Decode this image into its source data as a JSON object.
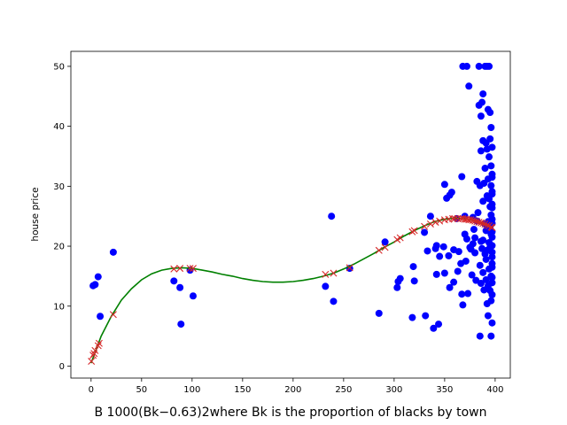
{
  "chart_data": {
    "type": "scatter",
    "title": "",
    "xlabel": "B 1000(Bk−0.63)2where Bk is the proportion of blacks by town",
    "ylabel": "house price",
    "xlim": [
      -20,
      415
    ],
    "ylim": [
      -2,
      52.5
    ],
    "xticks": [
      0,
      50,
      100,
      150,
      200,
      250,
      300,
      350,
      400
    ],
    "yticks": [
      0,
      10,
      20,
      30,
      40,
      50
    ],
    "grid": false,
    "legend": "none",
    "colors": {
      "observed": "#0000ff",
      "predicted": "#d62728",
      "fit": "#008000"
    },
    "series": [
      {
        "kind": "scatter-dot",
        "points": [
          [
            2,
            13.4
          ],
          [
            4,
            13.6
          ],
          [
            7,
            14.9
          ],
          [
            9,
            8.3
          ],
          [
            22,
            19.0
          ],
          [
            82,
            14.2
          ],
          [
            88,
            13.1
          ],
          [
            89,
            7.0
          ],
          [
            98,
            16.0
          ],
          [
            101,
            11.7
          ],
          [
            232,
            13.3
          ],
          [
            238,
            25.0
          ],
          [
            240,
            10.8
          ],
          [
            256,
            16.3
          ],
          [
            285,
            8.8
          ],
          [
            291,
            20.7
          ],
          [
            303,
            13.1
          ],
          [
            304,
            14.1
          ],
          [
            306,
            14.6
          ],
          [
            318,
            8.1
          ],
          [
            319,
            16.6
          ],
          [
            320,
            14.2
          ],
          [
            330,
            22.3
          ],
          [
            331,
            8.4
          ],
          [
            333,
            19.2
          ],
          [
            336,
            25.0
          ],
          [
            339,
            6.3
          ],
          [
            341,
            19.6
          ],
          [
            342,
            15.3
          ],
          [
            342,
            20.1
          ],
          [
            344,
            7.0
          ],
          [
            345,
            18.3
          ],
          [
            349,
            19.9
          ],
          [
            350,
            15.5
          ],
          [
            350,
            30.3
          ],
          [
            352,
            28.0
          ],
          [
            354,
            18.4
          ],
          [
            355,
            13.1
          ],
          [
            355,
            28.5
          ],
          [
            357,
            29.0
          ],
          [
            359,
            19.4
          ],
          [
            359,
            14.0
          ],
          [
            362,
            24.6
          ],
          [
            363,
            15.8
          ],
          [
            364,
            19.1
          ],
          [
            366,
            17.1
          ],
          [
            367,
            31.6
          ],
          [
            367,
            12.0
          ],
          [
            368,
            10.2
          ],
          [
            368,
            50.0
          ],
          [
            370,
            25.0
          ],
          [
            370,
            22.0
          ],
          [
            371,
            17.5
          ],
          [
            372,
            21.2
          ],
          [
            372,
            50.0
          ],
          [
            373,
            12.1
          ],
          [
            374,
            46.7
          ],
          [
            375,
            19.8
          ],
          [
            376,
            19.5
          ],
          [
            377,
            15.2
          ],
          [
            378,
            20.4
          ],
          [
            378,
            24.8
          ],
          [
            379,
            22.8
          ],
          [
            380,
            18.9
          ],
          [
            380,
            21.4
          ],
          [
            381,
            14.3
          ],
          [
            382,
            24.2
          ],
          [
            382,
            30.8
          ],
          [
            383,
            25.6
          ],
          [
            384,
            50.0
          ],
          [
            384,
            43.5
          ],
          [
            385,
            5.0
          ],
          [
            385,
            30.1
          ],
          [
            385,
            16.8
          ],
          [
            386,
            20.8
          ],
          [
            386,
            41.7
          ],
          [
            386,
            13.8
          ],
          [
            386,
            35.9
          ],
          [
            387,
            44.0
          ],
          [
            387,
            19.6
          ],
          [
            388,
            45.4
          ],
          [
            388,
            37.6
          ],
          [
            388,
            27.5
          ],
          [
            388,
            21.0
          ],
          [
            388,
            15.6
          ],
          [
            389,
            12.7
          ],
          [
            389,
            30.5
          ],
          [
            390,
            18.7
          ],
          [
            390,
            33.0
          ],
          [
            390,
            23.7
          ],
          [
            390,
            50.0
          ],
          [
            391,
            14.4
          ],
          [
            391,
            22.6
          ],
          [
            391,
            37.2
          ],
          [
            391,
            17.8
          ],
          [
            392,
            28.4
          ],
          [
            392,
            50.0
          ],
          [
            392,
            36.2
          ],
          [
            392,
            19.3
          ],
          [
            392,
            10.4
          ],
          [
            393,
            8.4
          ],
          [
            393,
            42.8
          ],
          [
            393,
            24.1
          ],
          [
            393,
            31.2
          ],
          [
            393,
            13.4
          ],
          [
            394,
            50.0
          ],
          [
            394,
            16.2
          ],
          [
            394,
            34.9
          ],
          [
            394,
            20.6
          ],
          [
            394,
            27.9
          ],
          [
            395,
            26.6
          ],
          [
            395,
            37.9
          ],
          [
            395,
            12.6
          ],
          [
            395,
            23.1
          ],
          [
            395,
            19.9
          ],
          [
            395,
            42.3
          ],
          [
            396,
            39.8
          ],
          [
            396,
            30.1
          ],
          [
            396,
            15.0
          ],
          [
            396,
            22.0
          ],
          [
            396,
            10.9
          ],
          [
            396,
            25.2
          ],
          [
            396,
            5.0
          ],
          [
            396,
            33.4
          ],
          [
            397,
            28.7
          ],
          [
            397,
            7.2
          ],
          [
            397,
            17.1
          ],
          [
            397,
            36.5
          ],
          [
            397,
            21.5
          ],
          [
            397,
            13.9
          ],
          [
            397,
            24.5
          ],
          [
            397,
            32.0
          ],
          [
            397,
            29.1
          ],
          [
            397,
            18.2
          ],
          [
            397,
            16.5
          ],
          [
            397,
            20.1
          ],
          [
            397,
            23.8
          ],
          [
            397,
            27.0
          ],
          [
            397,
            14.8
          ],
          [
            397,
            11.9
          ],
          [
            397,
            22.4
          ],
          [
            397,
            26.4
          ],
          [
            397,
            19.0
          ],
          [
            397,
            31.5
          ]
        ]
      },
      {
        "kind": "scatter-x",
        "points": [
          [
            0.3,
            0.8
          ],
          [
            2,
            1.8
          ],
          [
            3,
            2.1
          ],
          [
            4,
            2.6
          ],
          [
            7,
            3.4
          ],
          [
            8,
            3.8
          ],
          [
            22,
            8.6
          ],
          [
            82,
            16.2
          ],
          [
            88,
            16.3
          ],
          [
            98,
            16.3
          ],
          [
            101,
            16.3
          ],
          [
            232,
            15.3
          ],
          [
            240,
            15.5
          ],
          [
            256,
            16.4
          ],
          [
            285,
            19.3
          ],
          [
            291,
            19.8
          ],
          [
            303,
            21.1
          ],
          [
            306,
            21.4
          ],
          [
            318,
            22.4
          ],
          [
            320,
            22.6
          ],
          [
            330,
            23.3
          ],
          [
            336,
            23.7
          ],
          [
            341,
            24.0
          ],
          [
            345,
            24.2
          ],
          [
            350,
            24.4
          ],
          [
            354,
            24.5
          ],
          [
            358,
            24.6
          ],
          [
            360,
            24.6
          ],
          [
            363,
            24.6
          ],
          [
            366,
            24.6
          ],
          [
            368,
            24.6
          ],
          [
            370,
            24.5
          ],
          [
            372,
            24.5
          ],
          [
            374,
            24.4
          ],
          [
            376,
            24.4
          ],
          [
            378,
            24.3
          ],
          [
            380,
            24.2
          ],
          [
            382,
            24.1
          ],
          [
            384,
            24.0
          ],
          [
            386,
            23.9
          ],
          [
            388,
            23.8
          ],
          [
            390,
            23.7
          ],
          [
            392,
            23.5
          ],
          [
            394,
            23.4
          ],
          [
            396,
            23.2
          ],
          [
            397,
            23.1
          ]
        ]
      },
      {
        "kind": "line",
        "x": [
          0,
          10,
          20,
          30,
          40,
          50,
          60,
          70,
          80,
          90,
          100,
          110,
          120,
          130,
          140,
          150,
          160,
          170,
          180,
          190,
          200,
          210,
          220,
          230,
          240,
          250,
          260,
          270,
          280,
          290,
          300,
          310,
          320,
          330,
          340,
          350,
          360,
          370,
          380,
          390,
          397
        ],
        "y": [
          0.5,
          5.0,
          8.3,
          11.0,
          12.9,
          14.4,
          15.4,
          16.0,
          16.3,
          16.4,
          16.3,
          16.0,
          15.7,
          15.3,
          15.0,
          14.6,
          14.3,
          14.1,
          14.0,
          14.0,
          14.1,
          14.3,
          14.6,
          15.0,
          15.5,
          16.2,
          17.0,
          17.9,
          18.8,
          19.8,
          20.7,
          21.7,
          22.6,
          23.4,
          24.1,
          24.5,
          24.7,
          24.6,
          24.2,
          23.6,
          23.0
        ]
      }
    ]
  }
}
